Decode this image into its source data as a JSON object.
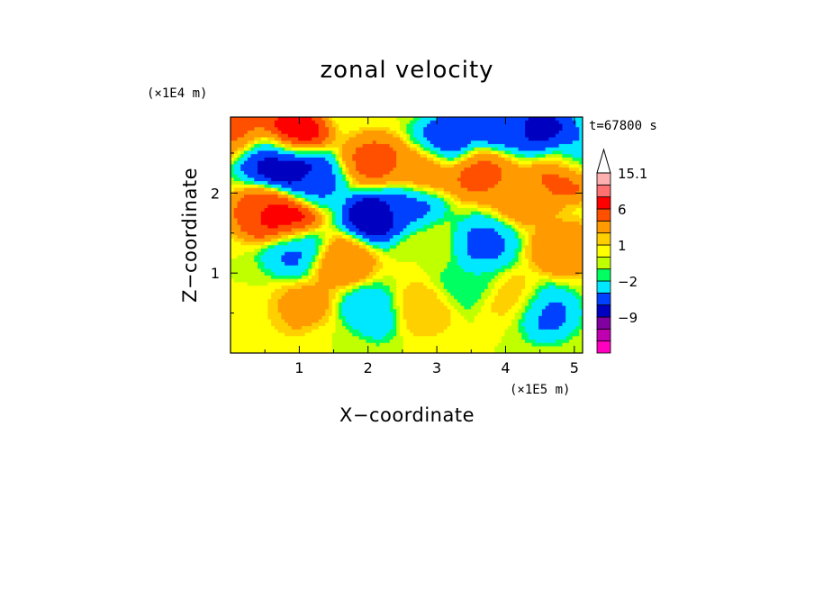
{
  "chart_data": {
    "type": "heatmap",
    "title": "zonal velocity",
    "time_label": "t=67800 s",
    "xlabel": "X−coordinate",
    "ylabel": "Z−coordinate",
    "x_unit": "(×1E5 m)",
    "y_unit": "(×1E4 m)",
    "xlim": [
      0.0,
      5.12
    ],
    "ylim": [
      0.0,
      2.95
    ],
    "x_ticks": [
      1,
      2,
      3,
      4,
      5
    ],
    "y_ticks": [
      1,
      2
    ],
    "x_tick_labels": [
      "1",
      "2",
      "3",
      "4",
      "5"
    ],
    "y_tick_labels": [
      "1",
      "2"
    ],
    "colorbar": {
      "levels": [
        -15,
        -12,
        -9,
        -6,
        -4,
        -2,
        -1,
        0,
        1,
        2,
        4,
        6,
        9,
        12,
        15.1
      ],
      "colors": [
        "#ff00c0",
        "#c000b0",
        "#8000a0",
        "#0000c0",
        "#0040ff",
        "#00e8ff",
        "#00ff60",
        "#c0ff00",
        "#ffff00",
        "#ffd000",
        "#ff9a00",
        "#ff5000",
        "#ff0000",
        "#ff7070",
        "#ffb0b0",
        "#ffffff"
      ],
      "labels": [
        "15.1",
        "6",
        "1",
        "−2",
        "−9"
      ],
      "label_values": [
        15.1,
        6,
        1,
        -2,
        -9
      ]
    },
    "features": [
      {
        "x": 0.55,
        "z": 2.45,
        "value": -7
      },
      {
        "x": 0.9,
        "z": 2.35,
        "value": -9
      },
      {
        "x": 1.2,
        "z": 2.15,
        "value": -5
      },
      {
        "x": 2.1,
        "z": 1.7,
        "value": -8
      },
      {
        "x": 2.6,
        "z": 1.8,
        "value": -5
      },
      {
        "x": 3.15,
        "z": 2.65,
        "value": -6
      },
      {
        "x": 3.9,
        "z": 2.85,
        "value": -6
      },
      {
        "x": 4.55,
        "z": 2.8,
        "value": -7
      },
      {
        "x": 5.05,
        "z": 2.45,
        "value": -5
      },
      {
        "x": 0.95,
        "z": 1.3,
        "value": -5
      },
      {
        "x": 3.65,
        "z": 1.35,
        "value": -5
      },
      {
        "x": 3.45,
        "z": 0.85,
        "value": -2
      },
      {
        "x": 4.55,
        "z": 0.5,
        "value": -5
      },
      {
        "x": 2.0,
        "z": 0.5,
        "value": -4
      },
      {
        "x": 0.9,
        "z": 2.7,
        "value": 9
      },
      {
        "x": 0.15,
        "z": 2.75,
        "value": 5
      },
      {
        "x": 0.5,
        "z": 1.75,
        "value": 6
      },
      {
        "x": 0.8,
        "z": 1.65,
        "value": 8
      },
      {
        "x": 1.6,
        "z": 1.15,
        "value": 4
      },
      {
        "x": 2.1,
        "z": 2.4,
        "value": 5
      },
      {
        "x": 2.8,
        "z": 2.3,
        "value": 4
      },
      {
        "x": 3.6,
        "z": 2.25,
        "value": 5
      },
      {
        "x": 4.3,
        "z": 1.95,
        "value": 4
      },
      {
        "x": 4.9,
        "z": 2.25,
        "value": 6
      },
      {
        "x": 4.85,
        "z": 1.3,
        "value": 4
      },
      {
        "x": 1.1,
        "z": 0.55,
        "value": 3
      },
      {
        "x": 2.8,
        "z": 0.55,
        "value": 2
      },
      {
        "x": 4.1,
        "z": 0.65,
        "value": 2
      },
      {
        "x": 0.3,
        "z": 0.25,
        "value": 1
      },
      {
        "x": 1.5,
        "z": 0.15,
        "value": 0
      },
      {
        "x": 3.8,
        "z": 0.2,
        "value": 0
      },
      {
        "x": 2.9,
        "z": 1.35,
        "value": 0
      }
    ],
    "grid": false,
    "legend": "right"
  }
}
